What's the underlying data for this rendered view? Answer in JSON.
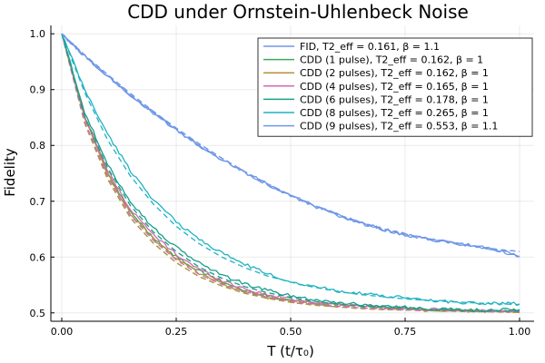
{
  "chart_data": {
    "type": "line",
    "title": "CDD under Ornstein-Uhlenbeck Noise",
    "xlabel": "T (t/τ₀)",
    "ylabel": "Fidelity",
    "xlim": [
      0.0,
      1.0
    ],
    "ylim": [
      0.485,
      1.015
    ],
    "x_ticks": [
      "0.00",
      "0.25",
      "0.50",
      "0.75",
      "1.00"
    ],
    "x_tick_values": [
      0,
      0.25,
      0.5,
      0.75,
      1.0
    ],
    "y_ticks": [
      "0.5",
      "0.6",
      "0.7",
      "0.8",
      "0.9",
      "1.0"
    ],
    "y_tick_values": [
      0.5,
      0.6,
      0.7,
      0.8,
      0.9,
      1.0
    ],
    "grid": true,
    "legend_position": "top-right",
    "line_styles": {
      "measured": "solid",
      "fit": "dashed"
    },
    "series": [
      {
        "name": "FID, T2_eff = 0.161, β = 1.1",
        "color": "#6f97e8",
        "x": [
          0,
          0.05,
          0.1,
          0.15,
          0.2,
          0.25,
          0.3,
          0.35,
          0.4,
          0.45,
          0.5,
          0.55,
          0.6,
          0.65,
          0.7,
          0.75,
          0.8,
          0.85,
          0.9,
          0.95,
          1.0
        ],
        "y": [
          1.0,
          0.96,
          0.925,
          0.89,
          0.858,
          0.828,
          0.8,
          0.775,
          0.752,
          0.73,
          0.71,
          0.692,
          0.676,
          0.662,
          0.65,
          0.64,
          0.632,
          0.626,
          0.62,
          0.613,
          0.601
        ],
        "fit_y": [
          1.0,
          0.962,
          0.927,
          0.893,
          0.861,
          0.831,
          0.803,
          0.777,
          0.753,
          0.731,
          0.711,
          0.693,
          0.677,
          0.663,
          0.651,
          0.641,
          0.633,
          0.627,
          0.62,
          0.614,
          0.61
        ]
      },
      {
        "name": "CDD (1 pulse), T2_eff = 0.162, β = 1",
        "color": "#3ea85a",
        "x": [
          0,
          0.05,
          0.1,
          0.15,
          0.2,
          0.25,
          0.3,
          0.35,
          0.4,
          0.45,
          0.5,
          0.55,
          0.6,
          0.65,
          0.7,
          0.75,
          0.8,
          0.85,
          0.9,
          0.95,
          1.0
        ],
        "y": [
          1.0,
          0.85,
          0.75,
          0.68,
          0.635,
          0.6,
          0.575,
          0.555,
          0.54,
          0.53,
          0.523,
          0.518,
          0.515,
          0.513,
          0.51,
          0.508,
          0.506,
          0.505,
          0.504,
          0.503,
          0.505
        ],
        "fit_y": [
          1.0,
          0.84,
          0.74,
          0.67,
          0.625,
          0.59,
          0.565,
          0.548,
          0.535,
          0.526,
          0.519,
          0.514,
          0.511,
          0.508,
          0.506,
          0.505,
          0.504,
          0.503,
          0.502,
          0.502,
          0.501
        ]
      },
      {
        "name": "CDD (2 pulses), T2_eff = 0.162, β = 1",
        "color": "#b5913a",
        "x": [
          0,
          0.05,
          0.1,
          0.15,
          0.2,
          0.25,
          0.3,
          0.35,
          0.4,
          0.45,
          0.5,
          0.55,
          0.6,
          0.65,
          0.7,
          0.75,
          0.8,
          0.85,
          0.9,
          0.95,
          1.0
        ],
        "y": [
          1.0,
          0.85,
          0.748,
          0.678,
          0.632,
          0.597,
          0.572,
          0.553,
          0.538,
          0.528,
          0.521,
          0.516,
          0.513,
          0.511,
          0.509,
          0.507,
          0.505,
          0.504,
          0.503,
          0.502,
          0.502
        ],
        "fit_y": [
          1.0,
          0.84,
          0.74,
          0.67,
          0.625,
          0.59,
          0.565,
          0.548,
          0.535,
          0.526,
          0.519,
          0.514,
          0.511,
          0.508,
          0.506,
          0.505,
          0.504,
          0.503,
          0.502,
          0.502,
          0.501
        ]
      },
      {
        "name": "CDD (4 pulses), T2_eff = 0.165, β = 1",
        "color": "#d36aaf",
        "x": [
          0,
          0.05,
          0.1,
          0.15,
          0.2,
          0.25,
          0.3,
          0.35,
          0.4,
          0.45,
          0.5,
          0.55,
          0.6,
          0.65,
          0.7,
          0.75,
          0.8,
          0.85,
          0.9,
          0.95,
          1.0
        ],
        "y": [
          1.0,
          0.855,
          0.755,
          0.685,
          0.64,
          0.605,
          0.578,
          0.558,
          0.543,
          0.532,
          0.525,
          0.519,
          0.515,
          0.512,
          0.51,
          0.508,
          0.506,
          0.505,
          0.504,
          0.503,
          0.504
        ],
        "fit_y": [
          1.0,
          0.843,
          0.745,
          0.675,
          0.63,
          0.595,
          0.569,
          0.551,
          0.538,
          0.528,
          0.521,
          0.516,
          0.512,
          0.509,
          0.507,
          0.506,
          0.505,
          0.504,
          0.503,
          0.502,
          0.502
        ]
      },
      {
        "name": "CDD (6 pulses), T2_eff = 0.178, β = 1",
        "color": "#179f8a",
        "x": [
          0,
          0.05,
          0.1,
          0.15,
          0.2,
          0.25,
          0.3,
          0.35,
          0.4,
          0.45,
          0.5,
          0.55,
          0.6,
          0.65,
          0.7,
          0.75,
          0.8,
          0.85,
          0.9,
          0.95,
          1.0
        ],
        "y": [
          1.0,
          0.86,
          0.765,
          0.7,
          0.652,
          0.617,
          0.59,
          0.568,
          0.552,
          0.54,
          0.531,
          0.524,
          0.519,
          0.515,
          0.512,
          0.51,
          0.508,
          0.506,
          0.505,
          0.505,
          0.506
        ],
        "fit_y": [
          1.0,
          0.852,
          0.76,
          0.692,
          0.645,
          0.61,
          0.582,
          0.562,
          0.547,
          0.536,
          0.528,
          0.521,
          0.516,
          0.512,
          0.51,
          0.508,
          0.506,
          0.505,
          0.504,
          0.503,
          0.503
        ]
      },
      {
        "name": "CDD (8 pulses), T2_eff = 0.265, β = 1",
        "color": "#1fb3c2",
        "x": [
          0,
          0.05,
          0.1,
          0.15,
          0.2,
          0.25,
          0.3,
          0.35,
          0.4,
          0.45,
          0.5,
          0.55,
          0.6,
          0.65,
          0.7,
          0.75,
          0.8,
          0.85,
          0.9,
          0.95,
          1.0
        ],
        "y": [
          1.0,
          0.9,
          0.82,
          0.755,
          0.703,
          0.663,
          0.632,
          0.607,
          0.587,
          0.57,
          0.556,
          0.548,
          0.54,
          0.535,
          0.53,
          0.527,
          0.523,
          0.52,
          0.518,
          0.517,
          0.516
        ],
        "fit_y": [
          1.0,
          0.895,
          0.81,
          0.745,
          0.695,
          0.655,
          0.624,
          0.6,
          0.581,
          0.566,
          0.555,
          0.546,
          0.539,
          0.533,
          0.529,
          0.525,
          0.522,
          0.52,
          0.518,
          0.516,
          0.515
        ]
      },
      {
        "name": "CDD (9 pulses), T2_eff = 0.553, β = 1.1",
        "color": "#6f97e8",
        "x": [
          0,
          0.05,
          0.1,
          0.15,
          0.2,
          0.25,
          0.3,
          0.35,
          0.4,
          0.45,
          0.5,
          0.55,
          0.6,
          0.65,
          0.7,
          0.75,
          0.8,
          0.85,
          0.9,
          0.95,
          1.0
        ],
        "y": [
          1.0,
          0.96,
          0.925,
          0.89,
          0.858,
          0.828,
          0.8,
          0.775,
          0.752,
          0.73,
          0.71,
          0.692,
          0.676,
          0.662,
          0.65,
          0.64,
          0.632,
          0.626,
          0.62,
          0.613,
          0.601
        ],
        "fit_y": [
          1.0,
          0.962,
          0.927,
          0.893,
          0.861,
          0.831,
          0.803,
          0.777,
          0.753,
          0.731,
          0.711,
          0.693,
          0.677,
          0.663,
          0.651,
          0.641,
          0.633,
          0.627,
          0.62,
          0.614,
          0.61
        ]
      }
    ]
  }
}
